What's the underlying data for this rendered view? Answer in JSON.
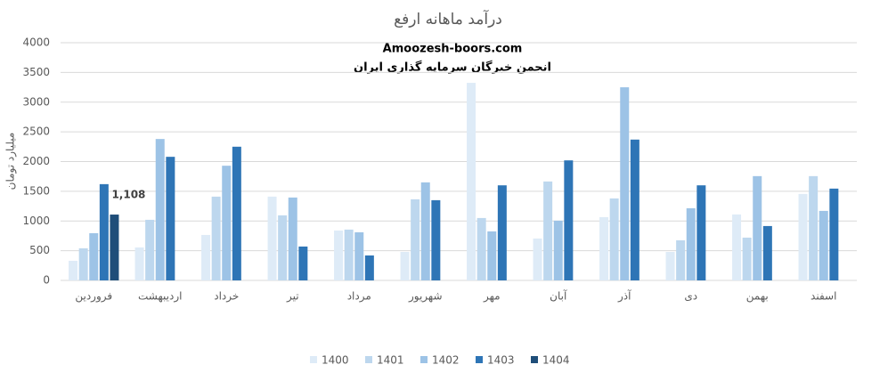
{
  "chart_data": {
    "type": "bar",
    "title": "درآمد ماهانه ارفع",
    "annotations": [
      "Amoozesh-boors.com",
      "انجمن خبرگان سرمایه گذاری ایران"
    ],
    "y_label": "میلیارد تومان",
    "categories": [
      "فروردین",
      "اردیبهشت",
      "خرداد",
      "تیر",
      "مرداد",
      "شهریور",
      "مهر",
      "آبان",
      "آذر",
      "دی",
      "بهمن",
      "اسفند"
    ],
    "series": [
      {
        "name": "1400",
        "color": "#deebf7",
        "values": [
          330,
          555,
          765,
          1410,
          840,
          480,
          3325,
          705,
          1065,
          480,
          1110,
          1455
        ]
      },
      {
        "name": "1401",
        "color": "#bdd7ee",
        "values": [
          540,
          1020,
          1410,
          1095,
          855,
          1365,
          1050,
          1665,
          1380,
          675,
          720,
          1755
        ]
      },
      {
        "name": "1402",
        "color": "#9dc3e6",
        "values": [
          795,
          2380,
          1930,
          1395,
          810,
          1650,
          825,
          1005,
          3250,
          1215,
          1755,
          1170
        ]
      },
      {
        "name": "1403",
        "color": "#2e75b6",
        "values": [
          1620,
          2080,
          2250,
          570,
          420,
          1350,
          1600,
          2020,
          2370,
          1600,
          915,
          1545
        ]
      },
      {
        "name": "1404",
        "color": "#1f4e79",
        "values": [
          1108,
          null,
          null,
          null,
          null,
          null,
          null,
          null,
          null,
          null,
          null,
          null
        ],
        "value_labels": [
          "1,108",
          null,
          null,
          null,
          null,
          null,
          null,
          null,
          null,
          null,
          null,
          null
        ]
      }
    ],
    "ylim": [
      0,
      4000
    ],
    "yticks": [
      0,
      500,
      1000,
      1500,
      2000,
      2500,
      3000,
      3500,
      4000
    ],
    "grid": true,
    "legend": "bottom"
  }
}
